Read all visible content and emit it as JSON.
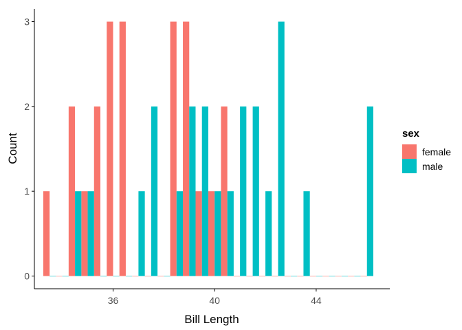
{
  "chart_data": {
    "type": "bar",
    "title": "",
    "xlabel": "Bill Length",
    "ylabel": "Count",
    "x_ticks": [
      36,
      40,
      44
    ],
    "y_ticks": [
      0,
      1,
      2,
      3
    ],
    "xlim": [
      32.9,
      46.9
    ],
    "ylim": [
      -0.15,
      3.15
    ],
    "bin_width": 0.5,
    "bin_centers": [
      33.5,
      34.0,
      34.5,
      35.0,
      35.5,
      36.0,
      36.5,
      37.0,
      37.5,
      38.0,
      38.5,
      39.0,
      39.5,
      40.0,
      40.5,
      41.0,
      41.5,
      42.0,
      42.5,
      43.0,
      43.5,
      44.0,
      44.5,
      45.0,
      45.5,
      46.0
    ],
    "legend": {
      "title": "sex",
      "position": "right"
    },
    "series": [
      {
        "name": "female",
        "color": "#F8766D",
        "values": [
          1,
          0,
          2,
          1,
          2,
          3,
          3,
          0,
          0,
          0,
          3,
          3,
          1,
          1,
          2,
          0,
          0,
          0,
          0,
          0,
          0,
          0,
          0,
          0,
          0,
          0
        ]
      },
      {
        "name": "male",
        "color": "#00BFC4",
        "values": [
          0,
          0,
          1,
          1,
          0,
          0,
          0,
          1,
          2,
          0,
          1,
          2,
          2,
          1,
          1,
          2,
          2,
          1,
          3,
          0,
          1,
          0,
          0,
          0,
          0,
          2
        ]
      }
    ]
  }
}
